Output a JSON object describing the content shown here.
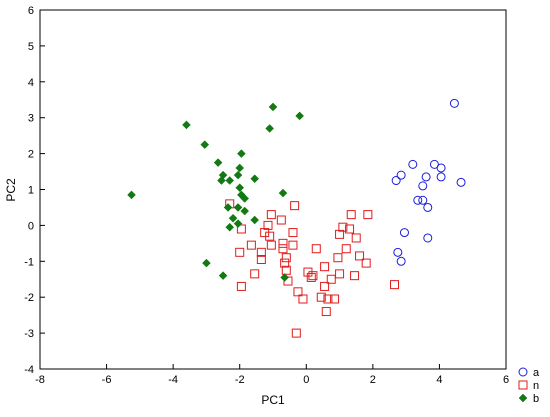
{
  "chart_data": {
    "type": "scatter",
    "title": "",
    "xlabel": "PC1",
    "ylabel": "PC2",
    "xlim": [
      -8,
      6
    ],
    "ylim": [
      -4,
      6
    ],
    "xticks": [
      "-8",
      "-6",
      "-4",
      "-2",
      "0",
      "2",
      "4",
      "6"
    ],
    "yticks": [
      "-4",
      "-3",
      "-2",
      "-1",
      "0",
      "1",
      "2",
      "3",
      "4",
      "5",
      "6"
    ],
    "grid": false,
    "legend_position": "right-bottom",
    "series": [
      {
        "name": "a",
        "marker": "circle-open",
        "color": "#1c1ce0",
        "points": [
          [
            4.45,
            3.4
          ],
          [
            3.2,
            1.7
          ],
          [
            3.85,
            1.7
          ],
          [
            4.05,
            1.6
          ],
          [
            2.85,
            1.4
          ],
          [
            3.6,
            1.35
          ],
          [
            4.05,
            1.35
          ],
          [
            2.7,
            1.25
          ],
          [
            4.65,
            1.2
          ],
          [
            3.5,
            1.1
          ],
          [
            3.35,
            0.7
          ],
          [
            3.5,
            0.7
          ],
          [
            3.65,
            0.5
          ],
          [
            2.95,
            -0.2
          ],
          [
            3.65,
            -0.35
          ],
          [
            2.75,
            -0.75
          ],
          [
            2.85,
            -1.0
          ]
        ]
      },
      {
        "name": "n",
        "marker": "square-open",
        "color": "#e01c1c",
        "points": [
          [
            -2.3,
            0.6
          ],
          [
            -1.05,
            0.3
          ],
          [
            -0.35,
            0.55
          ],
          [
            1.35,
            0.3
          ],
          [
            1.85,
            0.3
          ],
          [
            -1.15,
            0.0
          ],
          [
            -0.75,
            0.15
          ],
          [
            -1.95,
            -0.1
          ],
          [
            -1.25,
            -0.2
          ],
          [
            -1.1,
            -0.3
          ],
          [
            -0.4,
            -0.2
          ],
          [
            1.1,
            -0.05
          ],
          [
            1.3,
            -0.1
          ],
          [
            1.0,
            -0.25
          ],
          [
            1.5,
            -0.35
          ],
          [
            -1.65,
            -0.55
          ],
          [
            -1.05,
            -0.55
          ],
          [
            -0.7,
            -0.5
          ],
          [
            -0.7,
            -0.65
          ],
          [
            -0.4,
            -0.55
          ],
          [
            -1.35,
            -0.75
          ],
          [
            -2.0,
            -0.75
          ],
          [
            0.3,
            -0.65
          ],
          [
            1.2,
            -0.65
          ],
          [
            -0.6,
            -0.9
          ],
          [
            -0.65,
            -1.05
          ],
          [
            -1.35,
            -0.95
          ],
          [
            0.55,
            -1.15
          ],
          [
            0.95,
            -0.9
          ],
          [
            1.6,
            -0.85
          ],
          [
            1.8,
            -1.05
          ],
          [
            -1.55,
            -1.35
          ],
          [
            -0.6,
            -1.25
          ],
          [
            0.05,
            -1.3
          ],
          [
            0.2,
            -1.4
          ],
          [
            0.15,
            -1.45
          ],
          [
            1.0,
            -1.35
          ],
          [
            1.45,
            -1.4
          ],
          [
            -0.55,
            -1.55
          ],
          [
            0.75,
            -1.5
          ],
          [
            0.55,
            -1.7
          ],
          [
            2.65,
            -1.65
          ],
          [
            -0.25,
            -1.85
          ],
          [
            0.45,
            -2.0
          ],
          [
            0.65,
            -2.05
          ],
          [
            -0.1,
            -2.05
          ],
          [
            0.85,
            -2.05
          ],
          [
            0.6,
            -2.4
          ],
          [
            -1.95,
            -1.7
          ],
          [
            -0.3,
            -3.0
          ]
        ]
      },
      {
        "name": "b",
        "marker": "diamond-filled",
        "color": "#127a12",
        "points": [
          [
            -1.0,
            3.3
          ],
          [
            -0.2,
            3.05
          ],
          [
            -3.6,
            2.8
          ],
          [
            -1.1,
            2.7
          ],
          [
            -3.05,
            2.25
          ],
          [
            -1.95,
            2.0
          ],
          [
            -2.65,
            1.75
          ],
          [
            -2.0,
            1.6
          ],
          [
            -2.5,
            1.4
          ],
          [
            -2.05,
            1.4
          ],
          [
            -1.55,
            1.3
          ],
          [
            -2.55,
            1.25
          ],
          [
            -2.3,
            1.25
          ],
          [
            -2.0,
            1.05
          ],
          [
            -0.7,
            0.9
          ],
          [
            -5.25,
            0.85
          ],
          [
            -1.95,
            0.85
          ],
          [
            -1.85,
            0.75
          ],
          [
            -2.35,
            0.5
          ],
          [
            -2.05,
            0.5
          ],
          [
            -1.85,
            0.4
          ],
          [
            -2.2,
            0.2
          ],
          [
            -1.55,
            0.15
          ],
          [
            -2.05,
            0.05
          ],
          [
            -2.3,
            -0.05
          ],
          [
            -3.0,
            -1.05
          ],
          [
            -2.5,
            -1.4
          ],
          [
            -0.65,
            -1.45
          ]
        ]
      }
    ]
  }
}
